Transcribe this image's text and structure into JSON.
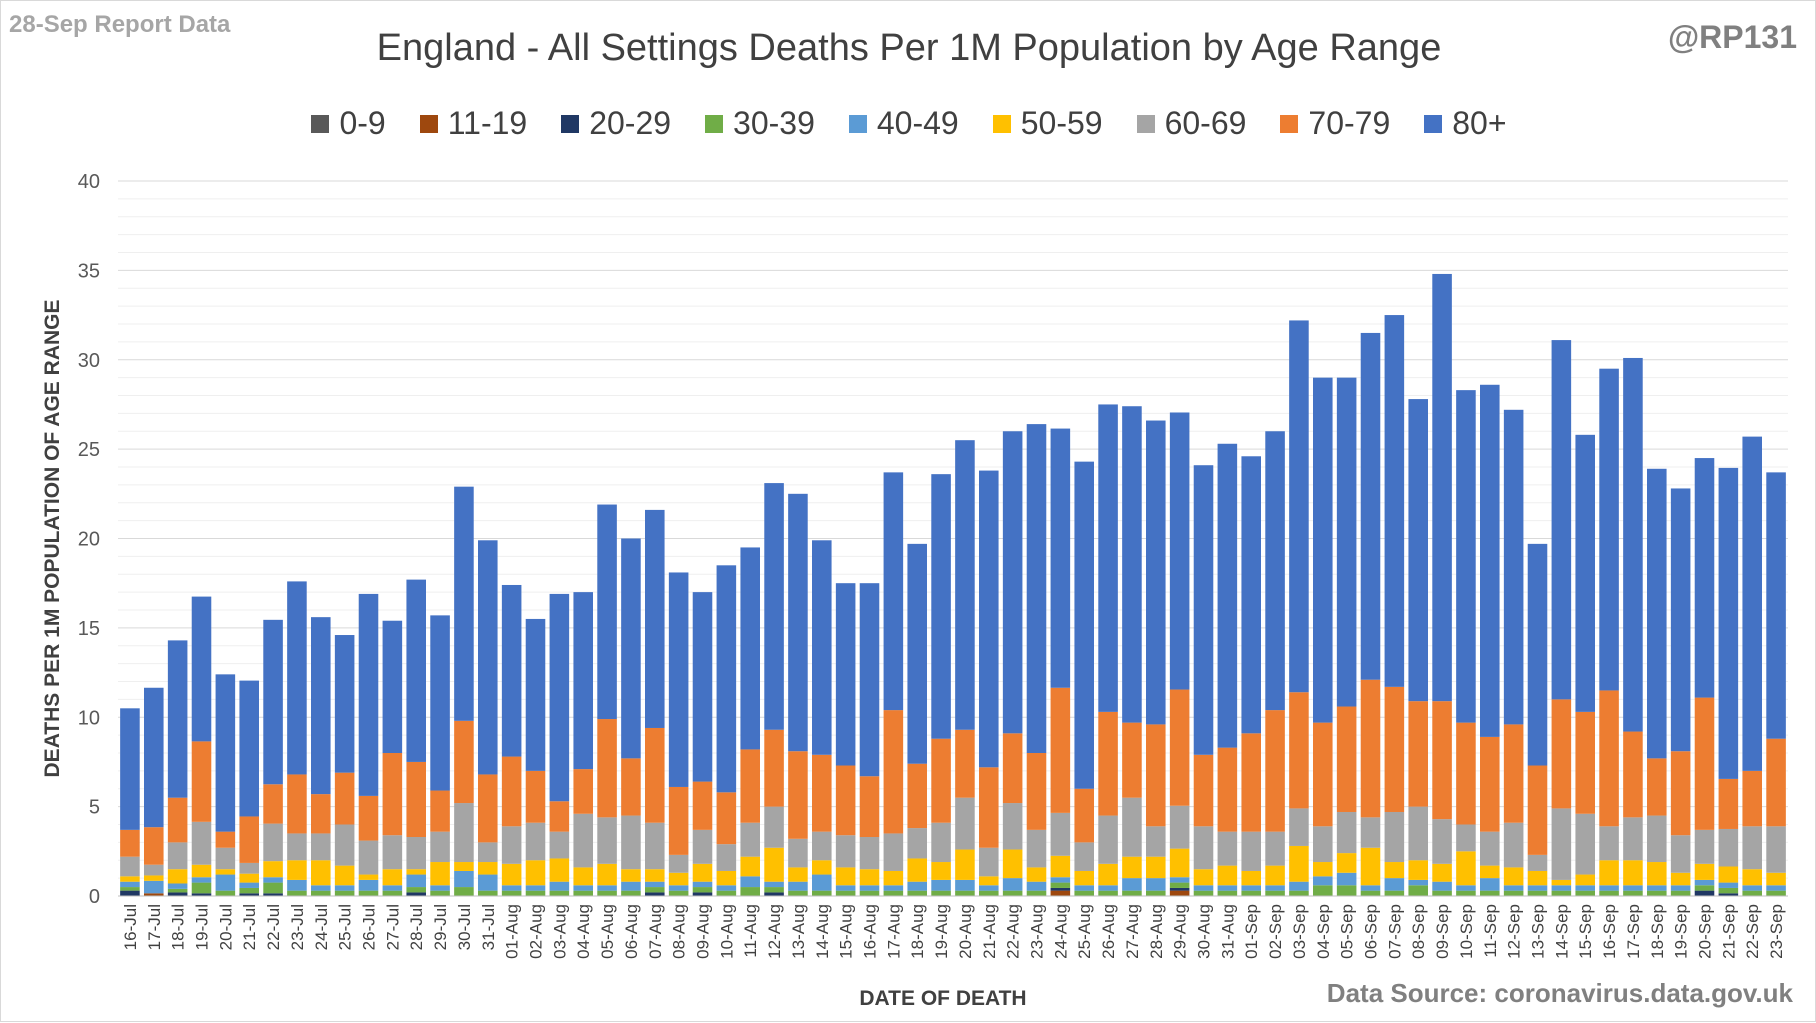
{
  "report_label": "28-Sep Report Data",
  "handle": "@RP131",
  "source": "Data Source: coronavirus.data.gov.uk",
  "chart_data": {
    "type": "bar",
    "stacked": true,
    "title": "England - All Settings Deaths Per 1M Population by Age Range",
    "xlabel": "DATE OF DEATH",
    "ylabel": "DEATHS PER 1M POPULATION OF AGE RANGE",
    "ylim": [
      0,
      40
    ],
    "yticks": [
      0,
      5,
      10,
      15,
      20,
      25,
      30,
      35,
      40
    ],
    "grid": true,
    "legend_position": "top",
    "categories": [
      "16-Jul",
      "17-Jul",
      "18-Jul",
      "19-Jul",
      "20-Jul",
      "21-Jul",
      "22-Jul",
      "23-Jul",
      "24-Jul",
      "25-Jul",
      "26-Jul",
      "27-Jul",
      "28-Jul",
      "29-Jul",
      "30-Jul",
      "31-Jul",
      "01-Aug",
      "02-Aug",
      "03-Aug",
      "04-Aug",
      "05-Aug",
      "06-Aug",
      "07-Aug",
      "08-Aug",
      "09-Aug",
      "10-Aug",
      "11-Aug",
      "12-Aug",
      "13-Aug",
      "14-Aug",
      "15-Aug",
      "16-Aug",
      "17-Aug",
      "18-Aug",
      "19-Aug",
      "20-Aug",
      "21-Aug",
      "22-Aug",
      "23-Aug",
      "24-Aug",
      "25-Aug",
      "26-Aug",
      "27-Aug",
      "28-Aug",
      "29-Aug",
      "30-Aug",
      "31-Aug",
      "01-Sep",
      "02-Sep",
      "03-Sep",
      "04-Sep",
      "05-Sep",
      "06-Sep",
      "07-Sep",
      "08-Sep",
      "09-Sep",
      "10-Sep",
      "11-Sep",
      "12-Sep",
      "13-Sep",
      "14-Sep",
      "15-Sep",
      "16-Sep",
      "17-Sep",
      "18-Sep",
      "19-Sep",
      "20-Sep",
      "21-Sep",
      "22-Sep",
      "23-Sep"
    ],
    "series": [
      {
        "name": "0-9",
        "color": "#595959",
        "values": [
          0,
          0,
          0,
          0,
          0,
          0,
          0,
          0,
          0,
          0,
          0,
          0,
          0,
          0,
          0,
          0,
          0,
          0,
          0,
          0,
          0,
          0,
          0,
          0,
          0,
          0,
          0,
          0,
          0,
          0,
          0,
          0,
          0,
          0,
          0,
          0,
          0,
          0,
          0,
          0,
          0,
          0,
          0,
          0,
          0,
          0,
          0,
          0,
          0,
          0,
          0,
          0,
          0,
          0,
          0,
          0,
          0,
          0,
          0,
          0,
          0,
          0,
          0,
          0,
          0,
          0,
          0,
          0,
          0,
          0
        ]
      },
      {
        "name": "11-19",
        "color": "#9e480e",
        "values": [
          0,
          0.15,
          0,
          0,
          0,
          0,
          0,
          0,
          0,
          0,
          0,
          0,
          0,
          0,
          0,
          0,
          0,
          0,
          0,
          0,
          0,
          0,
          0,
          0,
          0,
          0,
          0,
          0,
          0,
          0,
          0,
          0,
          0,
          0,
          0,
          0,
          0,
          0,
          0,
          0.3,
          0,
          0,
          0,
          0,
          0.3,
          0,
          0,
          0,
          0,
          0,
          0,
          0,
          0,
          0,
          0,
          0,
          0,
          0,
          0,
          0,
          0,
          0,
          0,
          0,
          0,
          0,
          0,
          0,
          0,
          0
        ]
      },
      {
        "name": "20-29",
        "color": "#203864",
        "values": [
          0.3,
          0,
          0.2,
          0.15,
          0,
          0.15,
          0.15,
          0,
          0,
          0,
          0,
          0,
          0.2,
          0,
          0,
          0,
          0,
          0,
          0,
          0,
          0,
          0,
          0.2,
          0,
          0.2,
          0,
          0,
          0.2,
          0,
          0,
          0,
          0,
          0,
          0,
          0,
          0,
          0,
          0,
          0,
          0.15,
          0,
          0,
          0,
          0,
          0.15,
          0,
          0,
          0,
          0,
          0,
          0,
          0,
          0,
          0,
          0,
          0,
          0,
          0,
          0,
          0,
          0,
          0,
          0,
          0,
          0,
          0,
          0.3,
          0.15,
          0,
          0
        ]
      },
      {
        "name": "30-39",
        "color": "#70ad47",
        "values": [
          0.2,
          0,
          0.2,
          0.6,
          0.3,
          0.3,
          0.6,
          0.3,
          0.3,
          0.3,
          0.3,
          0.3,
          0.3,
          0.3,
          0.5,
          0.3,
          0.3,
          0.3,
          0.3,
          0.3,
          0.3,
          0.3,
          0.3,
          0.3,
          0.3,
          0.3,
          0.5,
          0.3,
          0.3,
          0.3,
          0.3,
          0.3,
          0.3,
          0.3,
          0.3,
          0.3,
          0.3,
          0.3,
          0.3,
          0.3,
          0.3,
          0.3,
          0.3,
          0.3,
          0.3,
          0.3,
          0.3,
          0.3,
          0.3,
          0.3,
          0.6,
          0.6,
          0.3,
          0.3,
          0.6,
          0.3,
          0.3,
          0.3,
          0.3,
          0.3,
          0.3,
          0.3,
          0.3,
          0.3,
          0.3,
          0.3,
          0.3,
          0.3,
          0.3,
          0.3
        ]
      },
      {
        "name": "40-49",
        "color": "#5b9bd5",
        "values": [
          0.3,
          0.7,
          0.3,
          0.3,
          0.9,
          0.3,
          0.3,
          0.6,
          0.3,
          0.3,
          0.6,
          0.3,
          0.7,
          0.3,
          0.9,
          0.9,
          0.3,
          0.3,
          0.5,
          0.3,
          0.3,
          0.5,
          0.3,
          0.3,
          0.3,
          0.3,
          0.6,
          0.3,
          0.5,
          0.9,
          0.3,
          0.3,
          0.3,
          0.5,
          0.6,
          0.6,
          0.3,
          0.7,
          0.5,
          0.3,
          0.3,
          0.3,
          0.7,
          0.7,
          0.3,
          0.3,
          0.3,
          0.3,
          0.3,
          0.5,
          0.5,
          0.7,
          0.3,
          0.7,
          0.3,
          0.5,
          0.3,
          0.7,
          0.3,
          0.3,
          0.3,
          0.3,
          0.3,
          0.3,
          0.3,
          0.3,
          0.3,
          0.3,
          0.3,
          0.3
        ]
      },
      {
        "name": "50-59",
        "color": "#ffc000",
        "values": [
          0.3,
          0.3,
          0.8,
          0.7,
          0.3,
          0.5,
          0.9,
          1.1,
          1.4,
          1.1,
          0.3,
          0.9,
          0.3,
          1.3,
          0.5,
          0.7,
          1.2,
          1.4,
          1.3,
          1.0,
          1.2,
          0.7,
          0.7,
          0.7,
          1.0,
          0.8,
          1.1,
          1.9,
          0.8,
          0.8,
          1.0,
          0.9,
          0.8,
          1.3,
          1.0,
          1.7,
          0.5,
          1.6,
          0.8,
          1.2,
          0.8,
          1.2,
          1.2,
          1.2,
          1.6,
          0.9,
          1.1,
          0.8,
          1.1,
          2.0,
          0.8,
          1.1,
          2.1,
          0.9,
          1.1,
          1.0,
          1.9,
          0.7,
          1.0,
          0.8,
          0.3,
          0.6,
          1.4,
          1.4,
          1.3,
          0.7,
          0.9,
          0.9,
          0.9,
          0.7
        ]
      },
      {
        "name": "60-69",
        "color": "#a5a5a5",
        "values": [
          1.1,
          0.6,
          1.5,
          2.4,
          1.2,
          0.6,
          2.1,
          1.5,
          1.5,
          2.3,
          1.9,
          1.9,
          1.8,
          1.7,
          3.3,
          1.1,
          2.1,
          2.1,
          1.5,
          3.0,
          2.6,
          3.0,
          2.6,
          1.0,
          1.9,
          1.5,
          1.9,
          2.3,
          1.6,
          1.6,
          1.8,
          1.8,
          2.1,
          1.7,
          2.2,
          2.9,
          1.6,
          2.6,
          2.1,
          2.4,
          1.6,
          2.7,
          3.3,
          1.7,
          2.4,
          2.4,
          1.9,
          2.2,
          1.9,
          2.1,
          2.0,
          2.3,
          1.7,
          2.8,
          3.0,
          2.5,
          1.5,
          1.9,
          2.5,
          0.9,
          4.0,
          3.4,
          1.9,
          2.4,
          2.6,
          2.1,
          1.9,
          2.1,
          2.4,
          2.6
        ]
      },
      {
        "name": "70-79",
        "color": "#ed7d31",
        "values": [
          1.5,
          2.1,
          2.5,
          4.5,
          0.9,
          2.6,
          2.2,
          3.3,
          2.2,
          2.9,
          2.5,
          4.6,
          4.2,
          2.3,
          4.6,
          3.8,
          3.9,
          2.9,
          1.7,
          2.5,
          5.5,
          3.2,
          5.3,
          3.8,
          2.7,
          2.9,
          4.1,
          4.3,
          4.9,
          4.3,
          3.9,
          3.4,
          6.9,
          3.6,
          4.7,
          3.8,
          4.5,
          3.9,
          4.3,
          7.0,
          3.0,
          5.8,
          4.2,
          5.7,
          6.5,
          4.0,
          4.7,
          5.5,
          6.8,
          6.5,
          5.8,
          5.9,
          7.7,
          7.0,
          5.9,
          6.6,
          5.7,
          5.3,
          5.5,
          5.0,
          6.1,
          5.7,
          7.6,
          4.8,
          3.2,
          4.7,
          7.4,
          2.8,
          3.1,
          4.9
        ]
      },
      {
        "name": "80+",
        "color": "#4472c4",
        "values": [
          6.8,
          7.8,
          8.8,
          8.1,
          8.8,
          7.6,
          9.2,
          10.8,
          9.9,
          7.7,
          11.3,
          7.4,
          10.2,
          9.8,
          13.1,
          13.1,
          9.6,
          8.5,
          11.6,
          9.9,
          12.0,
          12.3,
          12.2,
          12.0,
          10.6,
          12.7,
          11.3,
          13.8,
          14.4,
          12.0,
          10.2,
          10.8,
          13.3,
          12.3,
          14.8,
          16.2,
          16.6,
          16.9,
          18.4,
          14.5,
          18.3,
          17.2,
          17.7,
          17.0,
          15.5,
          16.2,
          17.0,
          15.5,
          15.6,
          20.8,
          19.3,
          18.4,
          19.4,
          20.8,
          16.9,
          23.9,
          18.6,
          19.7,
          17.6,
          12.4,
          20.1,
          15.5,
          18.0,
          20.9,
          16.2,
          14.7,
          13.4,
          17.4,
          18.7,
          14.9
        ]
      }
    ]
  }
}
